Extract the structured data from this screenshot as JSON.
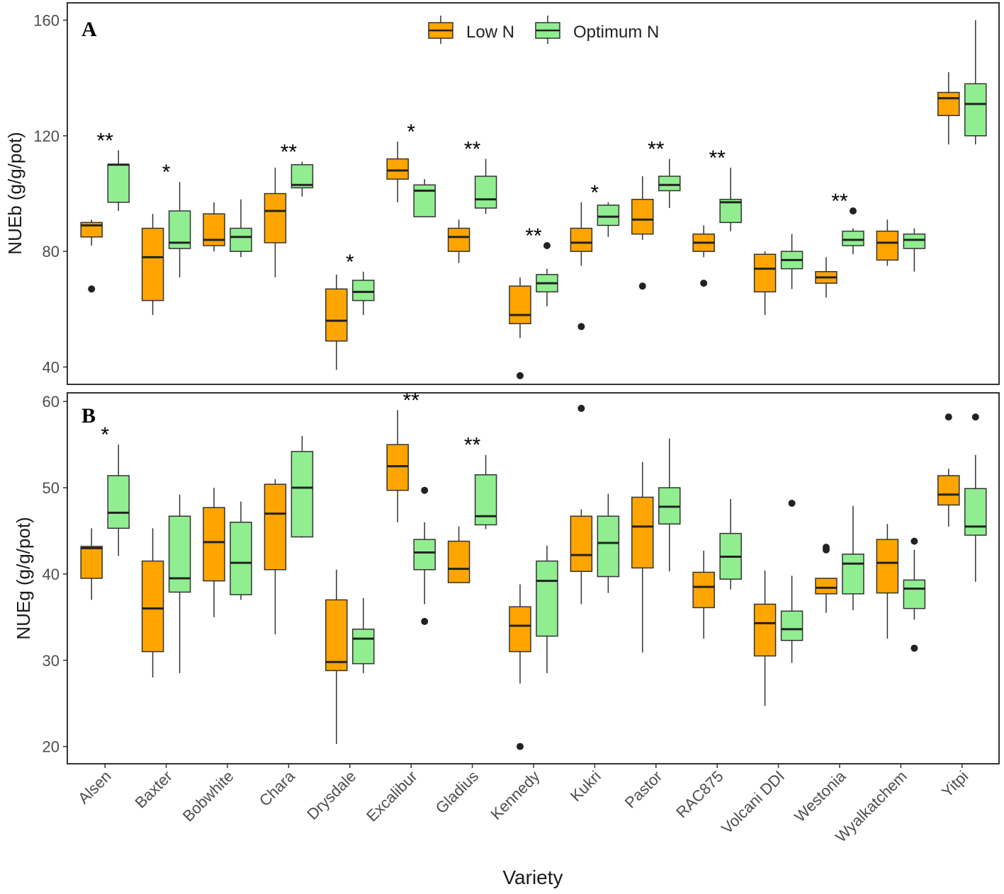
{
  "figure": {
    "x_title": "Variety",
    "legend": [
      {
        "label": "Low N",
        "color": "#FFA500"
      },
      {
        "label": "Optimum N",
        "color": "#90EE90"
      }
    ]
  },
  "chart_data": [
    {
      "type": "boxplot",
      "panel": "A",
      "ylabel": "NUEb (g/g/pot)",
      "ylim": [
        34,
        166
      ],
      "yticks": [
        40,
        80,
        120,
        160
      ],
      "categories": [
        "Alsen",
        "Baxter",
        "Bobwhite",
        "Chara",
        "Drysdale",
        "Excalibur",
        "Gladius",
        "Kennedy",
        "Kukri",
        "Pastor",
        "RAC875",
        "Volcani DDI",
        "Westonia",
        "Wyalkatchem",
        "Yitpi"
      ],
      "significance": [
        "**",
        "*",
        "",
        "**",
        "*",
        "*",
        "**",
        "**",
        "*",
        "**",
        "**",
        "",
        "**",
        "",
        ""
      ],
      "series": [
        {
          "name": "Low N",
          "color": "#FFA500",
          "boxes": [
            {
              "whisker_low": 82,
              "q1": 85,
              "median": 89,
              "q3": 90,
              "whisker_high": 91,
              "outliers": [
                67
              ]
            },
            {
              "whisker_low": 58,
              "q1": 63,
              "median": 78,
              "q3": 88,
              "whisker_high": 93,
              "outliers": []
            },
            {
              "whisker_low": 80,
              "q1": 82,
              "median": 84,
              "q3": 93,
              "whisker_high": 97,
              "outliers": []
            },
            {
              "whisker_low": 71,
              "q1": 83,
              "median": 94,
              "q3": 100,
              "whisker_high": 109,
              "outliers": []
            },
            {
              "whisker_low": 39,
              "q1": 49,
              "median": 56,
              "q3": 67,
              "whisker_high": 72,
              "outliers": []
            },
            {
              "whisker_low": 97,
              "q1": 105,
              "median": 108,
              "q3": 112,
              "whisker_high": 118,
              "outliers": []
            },
            {
              "whisker_low": 76,
              "q1": 80,
              "median": 85,
              "q3": 88,
              "whisker_high": 91,
              "outliers": []
            },
            {
              "whisker_low": 50,
              "q1": 55,
              "median": 58,
              "q3": 68,
              "whisker_high": 71,
              "outliers": [
                37
              ]
            },
            {
              "whisker_low": 75,
              "q1": 80,
              "median": 83,
              "q3": 88,
              "whisker_high": 97,
              "outliers": [
                54
              ]
            },
            {
              "whisker_low": 84,
              "q1": 86,
              "median": 91,
              "q3": 98,
              "whisker_high": 106,
              "outliers": [
                68
              ]
            },
            {
              "whisker_low": 78,
              "q1": 80,
              "median": 83,
              "q3": 86,
              "whisker_high": 89,
              "outliers": [
                69
              ]
            },
            {
              "whisker_low": 58,
              "q1": 66,
              "median": 74,
              "q3": 79,
              "whisker_high": 80,
              "outliers": []
            },
            {
              "whisker_low": 64,
              "q1": 69,
              "median": 71,
              "q3": 73,
              "whisker_high": 78,
              "outliers": []
            },
            {
              "whisker_low": 75,
              "q1": 77,
              "median": 83,
              "q3": 87,
              "whisker_high": 91,
              "outliers": []
            },
            {
              "whisker_low": 117,
              "q1": 127,
              "median": 133,
              "q3": 135,
              "whisker_high": 142,
              "outliers": []
            }
          ]
        },
        {
          "name": "Optimum N",
          "color": "#90EE90",
          "boxes": [
            {
              "whisker_low": 94,
              "q1": 97,
              "median": 110,
              "q3": 110,
              "whisker_high": 115,
              "outliers": []
            },
            {
              "whisker_low": 71,
              "q1": 81,
              "median": 83,
              "q3": 94,
              "whisker_high": 104,
              "outliers": []
            },
            {
              "whisker_low": 78,
              "q1": 80,
              "median": 85,
              "q3": 88,
              "whisker_high": 98,
              "outliers": []
            },
            {
              "whisker_low": 99,
              "q1": 102,
              "median": 103,
              "q3": 110,
              "whisker_high": 111,
              "outliers": []
            },
            {
              "whisker_low": 58,
              "q1": 63,
              "median": 66,
              "q3": 70,
              "whisker_high": 73,
              "outliers": []
            },
            {
              "whisker_low": 92,
              "q1": 92,
              "median": 101,
              "q3": 103,
              "whisker_high": 105,
              "outliers": []
            },
            {
              "whisker_low": 93,
              "q1": 95,
              "median": 98,
              "q3": 106,
              "whisker_high": 112,
              "outliers": []
            },
            {
              "whisker_low": 61,
              "q1": 66,
              "median": 69,
              "q3": 72,
              "whisker_high": 74,
              "outliers": [
                82
              ]
            },
            {
              "whisker_low": 85,
              "q1": 89,
              "median": 92,
              "q3": 96,
              "whisker_high": 97,
              "outliers": []
            },
            {
              "whisker_low": 95,
              "q1": 101,
              "median": 103,
              "q3": 106,
              "whisker_high": 112,
              "outliers": []
            },
            {
              "whisker_low": 87,
              "q1": 90,
              "median": 97,
              "q3": 98,
              "whisker_high": 109,
              "outliers": []
            },
            {
              "whisker_low": 67,
              "q1": 74,
              "median": 77,
              "q3": 80,
              "whisker_high": 86,
              "outliers": []
            },
            {
              "whisker_low": 79,
              "q1": 82,
              "median": 84,
              "q3": 87,
              "whisker_high": 88,
              "outliers": [
                94
              ]
            },
            {
              "whisker_low": 73,
              "q1": 81,
              "median": 84,
              "q3": 86,
              "whisker_high": 88,
              "outliers": []
            },
            {
              "whisker_low": 117,
              "q1": 120,
              "median": 131,
              "q3": 138,
              "whisker_high": 160,
              "outliers": []
            }
          ]
        }
      ]
    },
    {
      "type": "boxplot",
      "panel": "B",
      "ylabel": "NUEg (g/g/pot)",
      "ylim": [
        18,
        61
      ],
      "yticks": [
        20,
        30,
        40,
        50,
        60
      ],
      "categories": [
        "Alsen",
        "Baxter",
        "Bobwhite",
        "Chara",
        "Drysdale",
        "Excalibur",
        "Gladius",
        "Kennedy",
        "Kukri",
        "Pastor",
        "RAC875",
        "Volcani DDI",
        "Westonia",
        "Wyalkatchem",
        "Yitpi"
      ],
      "significance": [
        "*",
        "",
        "",
        "",
        "",
        "**",
        "**",
        "",
        "",
        "",
        "",
        "",
        "",
        "",
        ""
      ],
      "series": [
        {
          "name": "Low N",
          "color": "#FFA500",
          "boxes": [
            {
              "whisker_low": 37,
              "q1": 39.5,
              "median": 43,
              "q3": 43.2,
              "whisker_high": 45.3,
              "outliers": []
            },
            {
              "whisker_low": 28,
              "q1": 31,
              "median": 36,
              "q3": 41.5,
              "whisker_high": 45.3,
              "outliers": []
            },
            {
              "whisker_low": 35,
              "q1": 39.2,
              "median": 43.7,
              "q3": 47.7,
              "whisker_high": 50,
              "outliers": []
            },
            {
              "whisker_low": 33,
              "q1": 40.5,
              "median": 47,
              "q3": 50.4,
              "whisker_high": 51,
              "outliers": []
            },
            {
              "whisker_low": 20.3,
              "q1": 28.8,
              "median": 29.8,
              "q3": 37,
              "whisker_high": 40.5,
              "outliers": []
            },
            {
              "whisker_low": 46,
              "q1": 49.7,
              "median": 52.5,
              "q3": 55,
              "whisker_high": 59,
              "outliers": []
            },
            {
              "whisker_low": 39,
              "q1": 39,
              "median": 40.6,
              "q3": 43.8,
              "whisker_high": 45.5,
              "outliers": []
            },
            {
              "whisker_low": 27.3,
              "q1": 31,
              "median": 34,
              "q3": 36.2,
              "whisker_high": 38.8,
              "outliers": [
                20
              ]
            },
            {
              "whisker_low": 36.5,
              "q1": 40.3,
              "median": 42.2,
              "q3": 46.7,
              "whisker_high": 47.5,
              "outliers": [
                59.2
              ]
            },
            {
              "whisker_low": 30.9,
              "q1": 40.7,
              "median": 45.5,
              "q3": 48.9,
              "whisker_high": 53,
              "outliers": []
            },
            {
              "whisker_low": 32.5,
              "q1": 36.1,
              "median": 38.5,
              "q3": 40.2,
              "whisker_high": 42.7,
              "outliers": []
            },
            {
              "whisker_low": 24.7,
              "q1": 30.5,
              "median": 34.3,
              "q3": 36.5,
              "whisker_high": 40.4,
              "outliers": []
            },
            {
              "whisker_low": 35.5,
              "q1": 37.7,
              "median": 38.4,
              "q3": 39.5,
              "whisker_high": 39.5,
              "outliers": [
                42.8,
                43.1
              ]
            },
            {
              "whisker_low": 32.5,
              "q1": 37.8,
              "median": 41.3,
              "q3": 44,
              "whisker_high": 45.8,
              "outliers": []
            },
            {
              "whisker_low": 45.5,
              "q1": 48,
              "median": 49.2,
              "q3": 51.4,
              "whisker_high": 52.2,
              "outliers": [
                58.2
              ]
            }
          ]
        },
        {
          "name": "Optimum N",
          "color": "#90EE90",
          "boxes": [
            {
              "whisker_low": 42.1,
              "q1": 45.3,
              "median": 47.1,
              "q3": 51.4,
              "whisker_high": 55,
              "outliers": []
            },
            {
              "whisker_low": 28.5,
              "q1": 37.9,
              "median": 39.5,
              "q3": 46.7,
              "whisker_high": 49.2,
              "outliers": []
            },
            {
              "whisker_low": 37,
              "q1": 37.6,
              "median": 41.3,
              "q3": 46,
              "whisker_high": 48.4,
              "outliers": []
            },
            {
              "whisker_low": 44.2,
              "q1": 44.3,
              "median": 50,
              "q3": 54.2,
              "whisker_high": 56,
              "outliers": []
            },
            {
              "whisker_low": 28.5,
              "q1": 29.6,
              "median": 32.5,
              "q3": 33.6,
              "whisker_high": 37.2,
              "outliers": []
            },
            {
              "whisker_low": 36.5,
              "q1": 40.5,
              "median": 42.5,
              "q3": 44,
              "whisker_high": 46,
              "outliers": [
                34.5,
                49.7
              ]
            },
            {
              "whisker_low": 45.2,
              "q1": 45.7,
              "median": 46.7,
              "q3": 51.5,
              "whisker_high": 53.8,
              "outliers": []
            },
            {
              "whisker_low": 28.5,
              "q1": 32.8,
              "median": 39.2,
              "q3": 41.5,
              "whisker_high": 43.3,
              "outliers": []
            },
            {
              "whisker_low": 37.8,
              "q1": 39.7,
              "median": 43.6,
              "q3": 46.7,
              "whisker_high": 49.3,
              "outliers": []
            },
            {
              "whisker_low": 40.3,
              "q1": 45.8,
              "median": 47.8,
              "q3": 50,
              "whisker_high": 55.7,
              "outliers": []
            },
            {
              "whisker_low": 38.2,
              "q1": 39.4,
              "median": 42,
              "q3": 44.7,
              "whisker_high": 48.7,
              "outliers": []
            },
            {
              "whisker_low": 29.7,
              "q1": 32.3,
              "median": 33.6,
              "q3": 35.7,
              "whisker_high": 39.8,
              "outliers": [
                48.2
              ]
            },
            {
              "whisker_low": 35.8,
              "q1": 37.7,
              "median": 41.2,
              "q3": 42.3,
              "whisker_high": 47.9,
              "outliers": []
            },
            {
              "whisker_low": 34.7,
              "q1": 36,
              "median": 38.3,
              "q3": 39.3,
              "whisker_high": 42.8,
              "outliers": [
                43.8,
                31.4
              ]
            },
            {
              "whisker_low": 39.1,
              "q1": 44.5,
              "median": 45.5,
              "q3": 49.9,
              "whisker_high": 53.8,
              "outliers": [
                58.2
              ]
            }
          ]
        }
      ]
    }
  ]
}
